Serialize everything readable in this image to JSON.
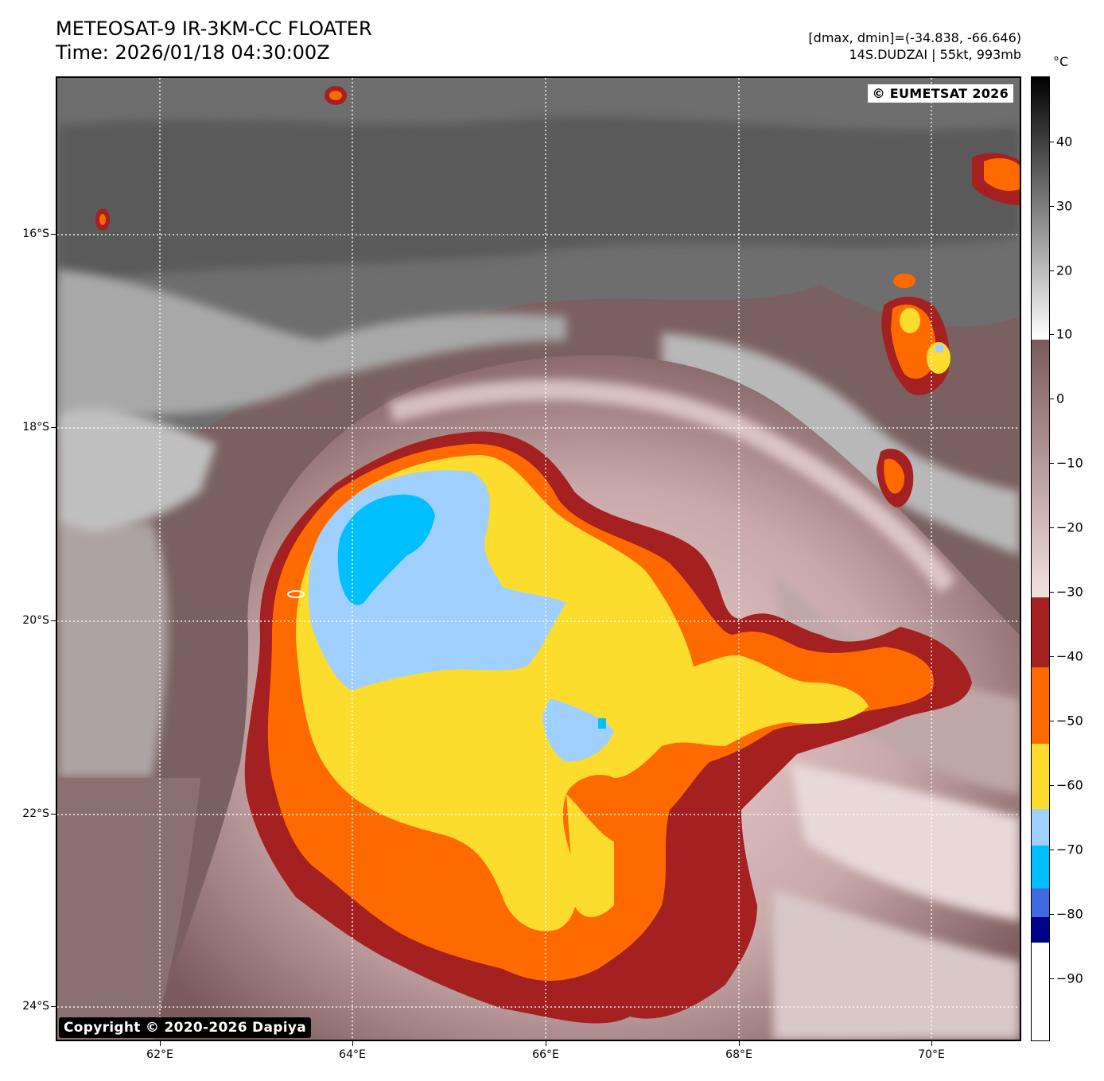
{
  "header": {
    "title": "METEOSAT-9 IR-3KM-CC FLOATER",
    "time": "Time: 2026/01/18 04:30:00Z",
    "range": "[dmax, dmin]=(-34.838, -66.646)",
    "storm": "14S.DUDZAI | 55kt, 993mb"
  },
  "map": {
    "copyright_top": "© EUMETSAT 2026",
    "copyright_bottom": "Copyright © 2020-2026 Dapiya",
    "lat_labels": [
      "16°S",
      "18°S",
      "20°S",
      "22°S",
      "24°S"
    ],
    "lon_labels": [
      "62°E",
      "64°E",
      "66°E",
      "68°E",
      "70°E"
    ]
  },
  "colorbar": {
    "unit": "°C",
    "labels": [
      "40",
      "30",
      "20",
      "10",
      "0",
      "−10",
      "−20",
      "−30",
      "−40",
      "−50",
      "−60",
      "−70",
      "−80",
      "−90"
    ],
    "colors": {
      "warm": "#1a1a1a",
      "gray": "#808080",
      "white": "#f2f2f2",
      "brown": "#7a5a5a",
      "pink": "#f2d6d6",
      "dark_red": "#a52020",
      "orange": "#ff6a00",
      "yellow": "#fcdc2c",
      "light_blue": "#a0d0ff",
      "cyan": "#00bfff",
      "blue": "#4169e1",
      "navy": "#00008b"
    }
  }
}
